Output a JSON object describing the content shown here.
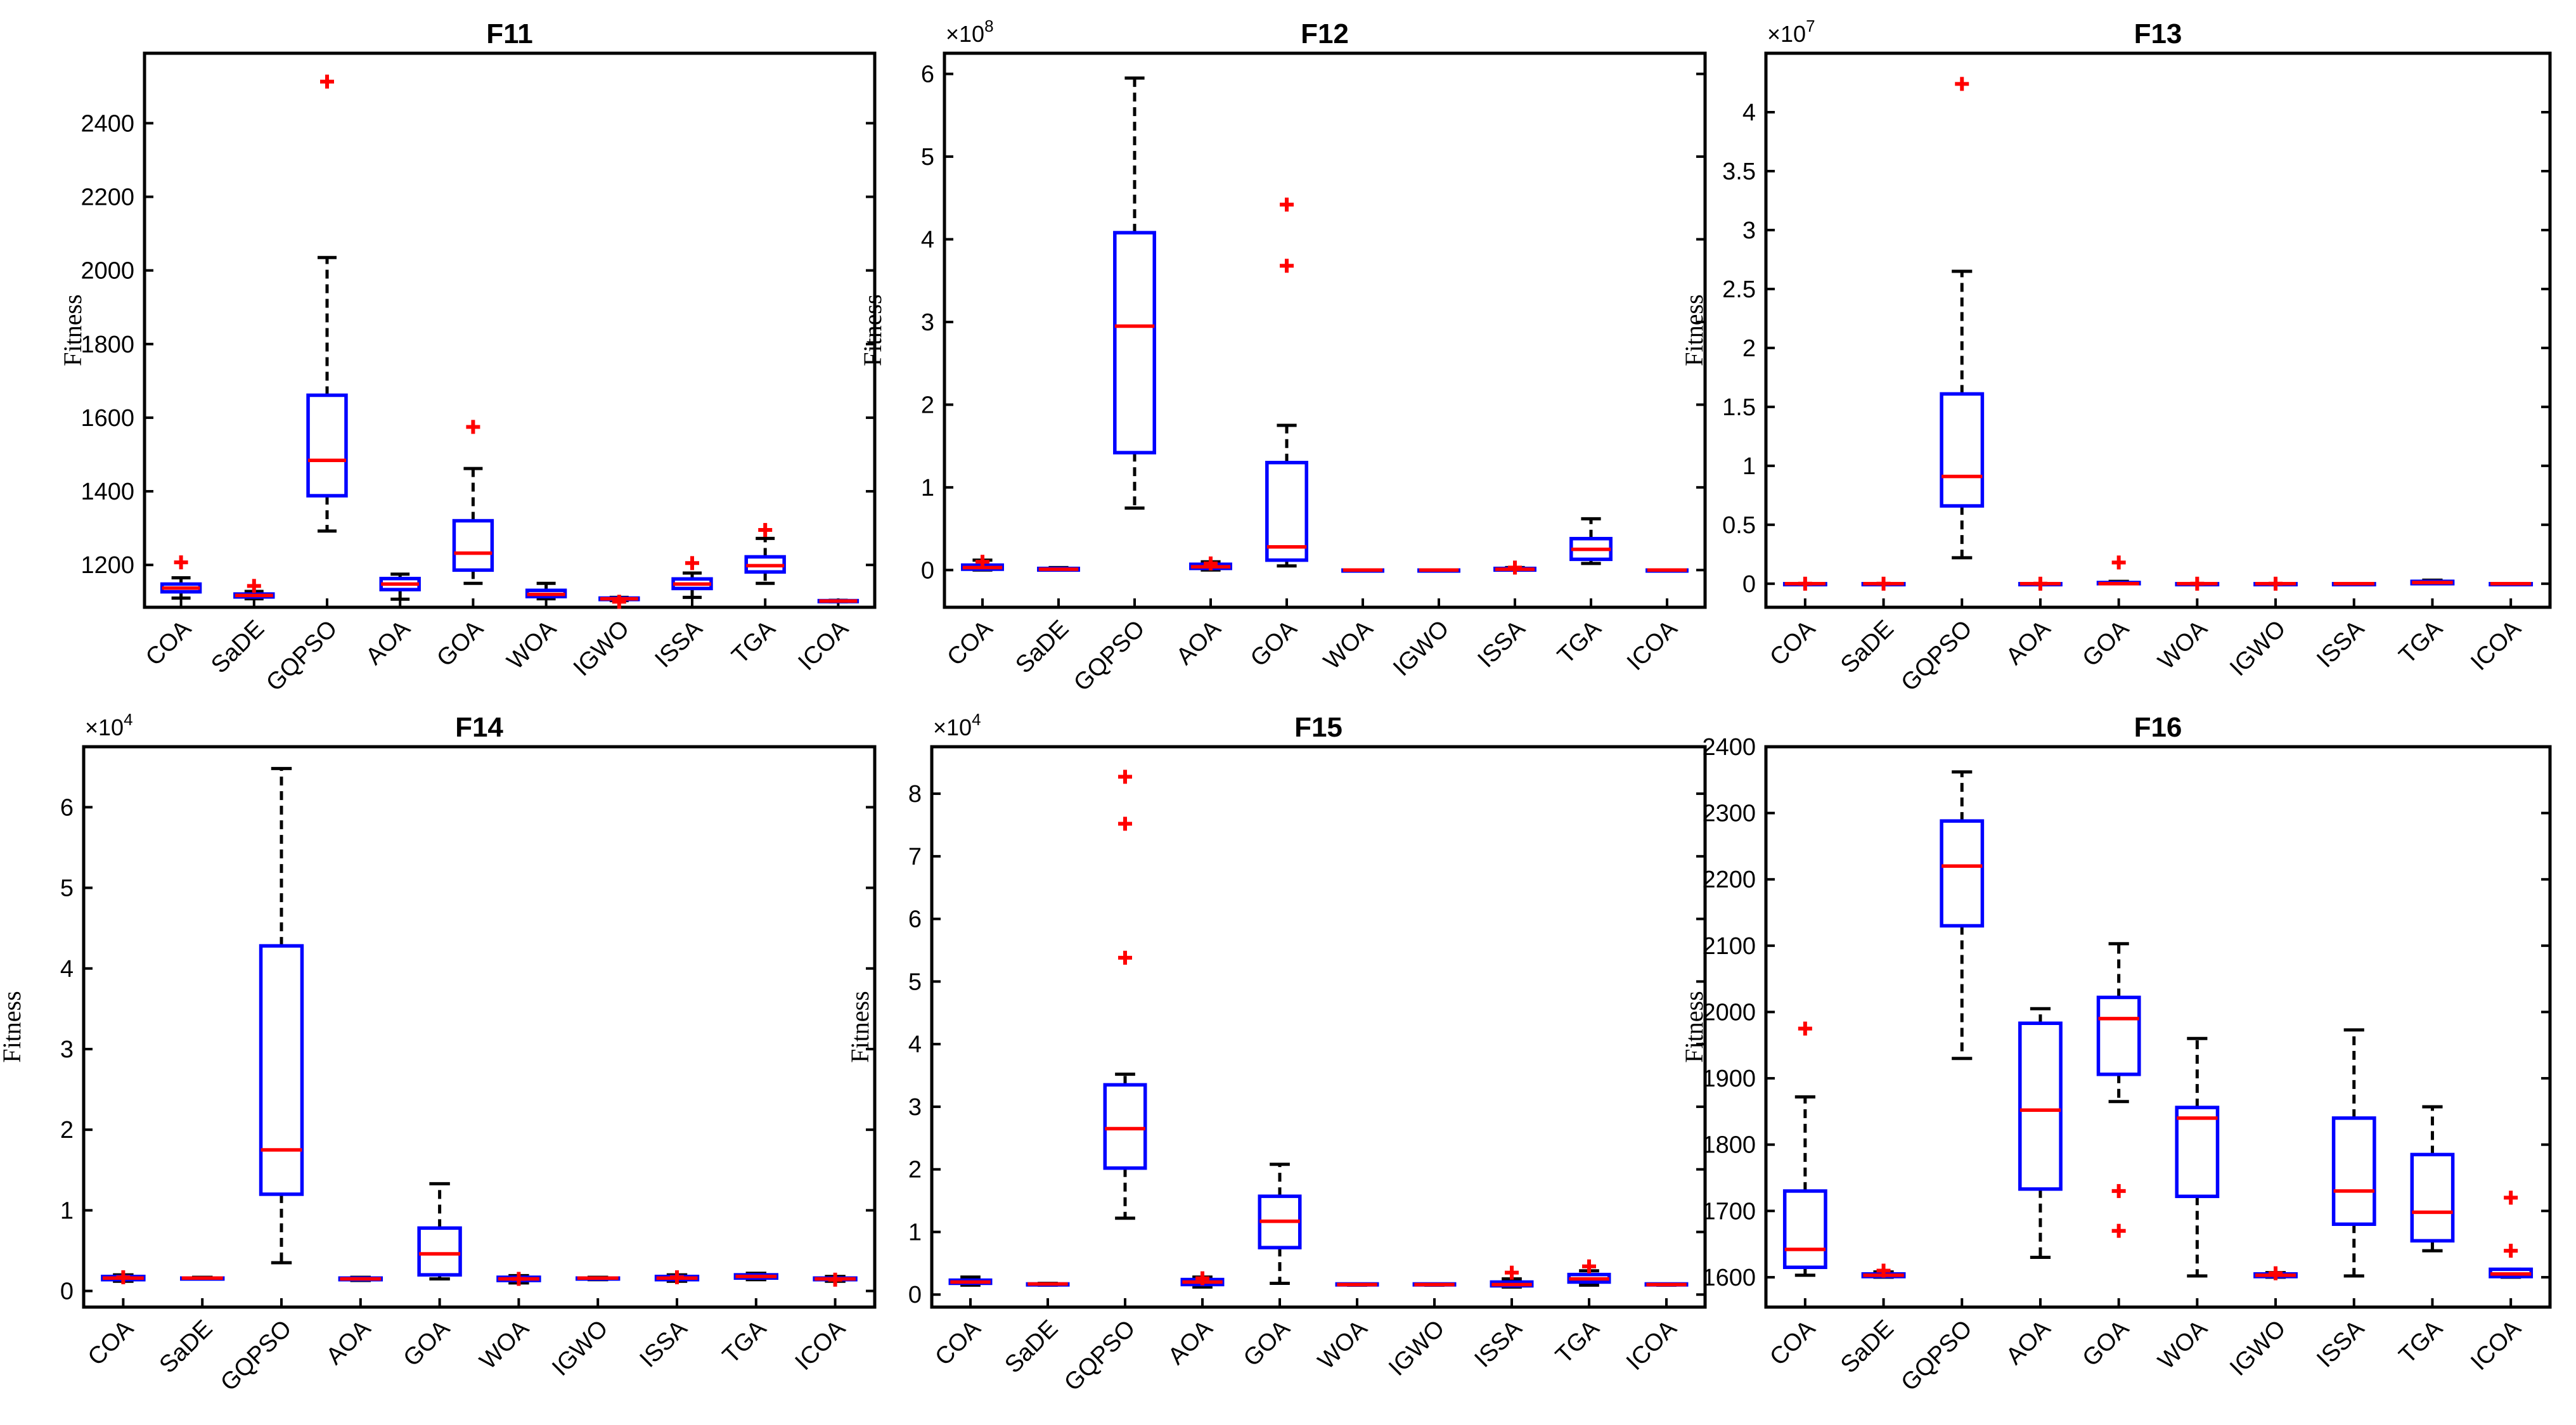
{
  "figure": {
    "background": "#ffffff",
    "box_color": "#0000ff",
    "median_color": "#ff0000",
    "outlier_color": "#ff0000",
    "whisker_color": "#000000"
  },
  "chart_data": [
    {
      "id": "F11",
      "type": "box",
      "title": "F11",
      "ylabel": "Fitness",
      "multiplier_base": "",
      "multiplier_exp": "",
      "ylim": [
        1085,
        2590
      ],
      "yticks": [
        1200,
        1400,
        1600,
        1800,
        2000,
        2200,
        2400
      ],
      "yticklabels": [
        "1200",
        "1400",
        "1600",
        "1800",
        "2000",
        "2200",
        "2400"
      ],
      "categories": [
        "COA",
        "SaDE",
        "GQPSO",
        "AOA",
        "GOA",
        "WOA",
        "IGWO",
        "ISSA",
        "TGA",
        "ICOA"
      ],
      "boxes": [
        {
          "wlow": 1110,
          "q1": 1127,
          "median": 1137,
          "q3": 1148,
          "whigh": 1165,
          "outliers": [
            1207
          ]
        },
        {
          "wlow": 1108,
          "q1": 1113,
          "median": 1117,
          "q3": 1121,
          "whigh": 1128,
          "outliers": [
            1143
          ]
        },
        {
          "wlow": 1292,
          "q1": 1388,
          "median": 1484,
          "q3": 1661,
          "whigh": 2035,
          "outliers": [
            2513
          ]
        },
        {
          "wlow": 1107,
          "q1": 1133,
          "median": 1148,
          "q3": 1163,
          "whigh": 1175,
          "outliers": []
        },
        {
          "wlow": 1150,
          "q1": 1186,
          "median": 1232,
          "q3": 1320,
          "whigh": 1462,
          "outliers": [
            1575
          ]
        },
        {
          "wlow": 1108,
          "q1": 1114,
          "median": 1120,
          "q3": 1131,
          "whigh": 1150,
          "outliers": []
        },
        {
          "wlow": 1103,
          "q1": 1106,
          "median": 1108,
          "q3": 1110,
          "whigh": 1112,
          "outliers": [
            1100
          ]
        },
        {
          "wlow": 1112,
          "q1": 1136,
          "median": 1148,
          "q3": 1162,
          "whigh": 1178,
          "outliers": [
            1205
          ]
        },
        {
          "wlow": 1150,
          "q1": 1181,
          "median": 1198,
          "q3": 1222,
          "whigh": 1272,
          "outliers": [
            1295
          ]
        },
        {
          "wlow": 1100,
          "q1": 1101,
          "median": 1102,
          "q3": 1103,
          "whigh": 1104,
          "outliers": []
        }
      ]
    },
    {
      "id": "F12",
      "type": "box",
      "title": "F12",
      "ylabel": "Fitness",
      "multiplier_base": "×10",
      "multiplier_exp": "8",
      "ylim": [
        -0.45,
        6.25
      ],
      "yticks": [
        0,
        1,
        2,
        3,
        4,
        5,
        6
      ],
      "yticklabels": [
        "0",
        "1",
        "2",
        "3",
        "4",
        "5",
        "6"
      ],
      "categories": [
        "COA",
        "SaDE",
        "GQPSO",
        "AOA",
        "GOA",
        "WOA",
        "IGWO",
        "ISSA",
        "TGA",
        "ICOA"
      ],
      "boxes": [
        {
          "wlow": 0.0,
          "q1": 0.01,
          "median": 0.03,
          "q3": 0.06,
          "whigh": 0.12,
          "outliers": [
            0.1
          ]
        },
        {
          "wlow": 0.0,
          "q1": 0.0,
          "median": 0.01,
          "q3": 0.02,
          "whigh": 0.03,
          "outliers": []
        },
        {
          "wlow": 0.75,
          "q1": 1.42,
          "median": 2.95,
          "q3": 4.08,
          "whigh": 5.95,
          "outliers": []
        },
        {
          "wlow": 0.0,
          "q1": 0.02,
          "median": 0.04,
          "q3": 0.07,
          "whigh": 0.1,
          "outliers": [
            0.08
          ]
        },
        {
          "wlow": 0.05,
          "q1": 0.12,
          "median": 0.28,
          "q3": 1.3,
          "whigh": 1.75,
          "outliers": [
            3.68,
            4.42
          ]
        },
        {
          "wlow": 0.0,
          "q1": 0.0,
          "median": 0.0,
          "q3": 0.0,
          "whigh": 0.0,
          "outliers": []
        },
        {
          "wlow": 0.0,
          "q1": 0.0,
          "median": 0.0,
          "q3": 0.0,
          "whigh": 0.0,
          "outliers": []
        },
        {
          "wlow": 0.0,
          "q1": 0.0,
          "median": 0.01,
          "q3": 0.02,
          "whigh": 0.03,
          "outliers": [
            0.03
          ]
        },
        {
          "wlow": 0.08,
          "q1": 0.13,
          "median": 0.25,
          "q3": 0.38,
          "whigh": 0.62,
          "outliers": []
        },
        {
          "wlow": 0.0,
          "q1": 0.0,
          "median": 0.0,
          "q3": 0.0,
          "whigh": 0.0,
          "outliers": []
        }
      ]
    },
    {
      "id": "F13",
      "type": "box",
      "title": "F13",
      "ylabel": "Fitness",
      "multiplier_base": "×10",
      "multiplier_exp": "7",
      "ylim": [
        -0.2,
        4.5
      ],
      "yticks": [
        0,
        0.5,
        1,
        1.5,
        2,
        2.5,
        3,
        3.5,
        4
      ],
      "yticklabels": [
        "0",
        "0.5",
        "1",
        "1.5",
        "2",
        "2.5",
        "3",
        "3.5",
        "4"
      ],
      "categories": [
        "COA",
        "SaDE",
        "GQPSO",
        "AOA",
        "GOA",
        "WOA",
        "IGWO",
        "ISSA",
        "TGA",
        "ICOA"
      ],
      "boxes": [
        {
          "wlow": 0.0,
          "q1": 0.0,
          "median": 0.0,
          "q3": 0.0,
          "whigh": 0.0,
          "outliers": [
            0.0
          ]
        },
        {
          "wlow": 0.0,
          "q1": 0.0,
          "median": 0.0,
          "q3": 0.0,
          "whigh": 0.0,
          "outliers": [
            0.0
          ]
        },
        {
          "wlow": 0.22,
          "q1": 0.66,
          "median": 0.91,
          "q3": 1.61,
          "whigh": 2.65,
          "outliers": [
            4.24
          ]
        },
        {
          "wlow": 0.0,
          "q1": 0.0,
          "median": 0.0,
          "q3": 0.0,
          "whigh": 0.0,
          "outliers": [
            0.0
          ]
        },
        {
          "wlow": 0.0,
          "q1": 0.0,
          "median": 0.0,
          "q3": 0.01,
          "whigh": 0.02,
          "outliers": [
            0.18
          ]
        },
        {
          "wlow": 0.0,
          "q1": 0.0,
          "median": 0.0,
          "q3": 0.0,
          "whigh": 0.0,
          "outliers": [
            0.0
          ]
        },
        {
          "wlow": 0.0,
          "q1": 0.0,
          "median": 0.0,
          "q3": 0.0,
          "whigh": 0.0,
          "outliers": [
            0.0
          ]
        },
        {
          "wlow": 0.0,
          "q1": 0.0,
          "median": 0.0,
          "q3": 0.0,
          "whigh": 0.0,
          "outliers": []
        },
        {
          "wlow": 0.0,
          "q1": 0.0,
          "median": 0.01,
          "q3": 0.02,
          "whigh": 0.03,
          "outliers": []
        },
        {
          "wlow": 0.0,
          "q1": 0.0,
          "median": 0.0,
          "q3": 0.0,
          "whigh": 0.0,
          "outliers": []
        }
      ]
    },
    {
      "id": "F14",
      "type": "box",
      "title": "F14",
      "ylabel": "Fitness",
      "multiplier_base": "×10",
      "multiplier_exp": "4",
      "ylim": [
        -0.2,
        6.75
      ],
      "yticks": [
        0,
        1,
        2,
        3,
        4,
        5,
        6
      ],
      "yticklabels": [
        "0",
        "1",
        "2",
        "3",
        "4",
        "5",
        "6"
      ],
      "categories": [
        "COA",
        "SaDE",
        "GQPSO",
        "AOA",
        "GOA",
        "WOA",
        "IGWO",
        "ISSA",
        "TGA",
        "ICOA"
      ],
      "boxes": [
        {
          "wlow": 0.12,
          "q1": 0.14,
          "median": 0.16,
          "q3": 0.18,
          "whigh": 0.2,
          "outliers": [
            0.17
          ]
        },
        {
          "wlow": 0.15,
          "q1": 0.15,
          "median": 0.16,
          "q3": 0.16,
          "whigh": 0.17,
          "outliers": []
        },
        {
          "wlow": 0.35,
          "q1": 1.2,
          "median": 1.75,
          "q3": 4.28,
          "whigh": 6.48,
          "outliers": []
        },
        {
          "wlow": 0.13,
          "q1": 0.14,
          "median": 0.15,
          "q3": 0.16,
          "whigh": 0.17,
          "outliers": []
        },
        {
          "wlow": 0.15,
          "q1": 0.2,
          "median": 0.46,
          "q3": 0.78,
          "whigh": 1.33,
          "outliers": []
        },
        {
          "wlow": 0.1,
          "q1": 0.13,
          "median": 0.15,
          "q3": 0.17,
          "whigh": 0.19,
          "outliers": [
            0.15
          ]
        },
        {
          "wlow": 0.14,
          "q1": 0.15,
          "median": 0.16,
          "q3": 0.16,
          "whigh": 0.17,
          "outliers": []
        },
        {
          "wlow": 0.12,
          "q1": 0.14,
          "median": 0.16,
          "q3": 0.18,
          "whigh": 0.2,
          "outliers": [
            0.17
          ]
        },
        {
          "wlow": 0.14,
          "q1": 0.16,
          "median": 0.18,
          "q3": 0.2,
          "whigh": 0.22,
          "outliers": []
        },
        {
          "wlow": 0.12,
          "q1": 0.14,
          "median": 0.15,
          "q3": 0.16,
          "whigh": 0.18,
          "outliers": [
            0.14
          ]
        }
      ]
    },
    {
      "id": "F15",
      "type": "box",
      "title": "F15",
      "ylabel": "Fitness",
      "multiplier_base": "×10",
      "multiplier_exp": "4",
      "ylim": [
        -0.2,
        8.75
      ],
      "yticks": [
        0,
        1,
        2,
        3,
        4,
        5,
        6,
        7,
        8
      ],
      "yticklabels": [
        "0",
        "1",
        "2",
        "3",
        "4",
        "5",
        "6",
        "7",
        "8"
      ],
      "categories": [
        "COA",
        "SaDE",
        "GQPSO",
        "AOA",
        "GOA",
        "WOA",
        "IGWO",
        "ISSA",
        "TGA",
        "ICOA"
      ],
      "boxes": [
        {
          "wlow": 0.15,
          "q1": 0.18,
          "median": 0.2,
          "q3": 0.23,
          "whigh": 0.28,
          "outliers": []
        },
        {
          "wlow": 0.15,
          "q1": 0.16,
          "median": 0.17,
          "q3": 0.17,
          "whigh": 0.18,
          "outliers": []
        },
        {
          "wlow": 1.22,
          "q1": 2.02,
          "median": 2.65,
          "q3": 3.35,
          "whigh": 3.52,
          "outliers": [
            5.38,
            7.52,
            8.27
          ]
        },
        {
          "wlow": 0.12,
          "q1": 0.16,
          "median": 0.2,
          "q3": 0.24,
          "whigh": 0.28,
          "outliers": [
            0.26
          ]
        },
        {
          "wlow": 0.18,
          "q1": 0.75,
          "median": 1.17,
          "q3": 1.57,
          "whigh": 2.08,
          "outliers": []
        },
        {
          "wlow": 0.15,
          "q1": 0.16,
          "median": 0.16,
          "q3": 0.17,
          "whigh": 0.17,
          "outliers": []
        },
        {
          "wlow": 0.15,
          "q1": 0.16,
          "median": 0.16,
          "q3": 0.17,
          "whigh": 0.17,
          "outliers": []
        },
        {
          "wlow": 0.12,
          "q1": 0.14,
          "median": 0.16,
          "q3": 0.2,
          "whigh": 0.25,
          "outliers": [
            0.35
          ]
        },
        {
          "wlow": 0.15,
          "q1": 0.2,
          "median": 0.25,
          "q3": 0.32,
          "whigh": 0.38,
          "outliers": [
            0.45
          ]
        },
        {
          "wlow": 0.15,
          "q1": 0.16,
          "median": 0.16,
          "q3": 0.17,
          "whigh": 0.17,
          "outliers": []
        }
      ]
    },
    {
      "id": "F16",
      "type": "box",
      "title": "F16",
      "ylabel": "Fitness",
      "multiplier_base": "",
      "multiplier_exp": "",
      "ylim": [
        1555,
        2400
      ],
      "yticks": [
        1600,
        1700,
        1800,
        1900,
        2000,
        2100,
        2200,
        2300,
        2400
      ],
      "yticklabels": [
        "1600",
        "1700",
        "1800",
        "1900",
        "2000",
        "2100",
        "2200",
        "2300",
        "2400"
      ],
      "categories": [
        "COA",
        "SaDE",
        "GQPSO",
        "AOA",
        "GOA",
        "WOA",
        "IGWO",
        "ISSA",
        "TGA",
        "ICOA"
      ],
      "boxes": [
        {
          "wlow": 1603,
          "q1": 1615,
          "median": 1642,
          "q3": 1730,
          "whigh": 1872,
          "outliers": [
            1975
          ]
        },
        {
          "wlow": 1600,
          "q1": 1601,
          "median": 1603,
          "q3": 1605,
          "whigh": 1608,
          "outliers": [
            1610
          ]
        },
        {
          "wlow": 1930,
          "q1": 2130,
          "median": 2220,
          "q3": 2288,
          "whigh": 2362,
          "outliers": []
        },
        {
          "wlow": 1630,
          "q1": 1733,
          "median": 1852,
          "q3": 1983,
          "whigh": 2005,
          "outliers": []
        },
        {
          "wlow": 1865,
          "q1": 1906,
          "median": 1990,
          "q3": 2022,
          "whigh": 2103,
          "outliers": [
            1670,
            1730
          ]
        },
        {
          "wlow": 1602,
          "q1": 1722,
          "median": 1840,
          "q3": 1856,
          "whigh": 1960,
          "outliers": []
        },
        {
          "wlow": 1600,
          "q1": 1601,
          "median": 1603,
          "q3": 1605,
          "whigh": 1607,
          "outliers": [
            1606
          ]
        },
        {
          "wlow": 1602,
          "q1": 1680,
          "median": 1730,
          "q3": 1840,
          "whigh": 1973,
          "outliers": []
        },
        {
          "wlow": 1640,
          "q1": 1655,
          "median": 1698,
          "q3": 1785,
          "whigh": 1857,
          "outliers": []
        },
        {
          "wlow": 1600,
          "q1": 1601,
          "median": 1605,
          "q3": 1612,
          "whigh": 1612,
          "outliers": [
            1640,
            1720
          ]
        }
      ]
    }
  ]
}
